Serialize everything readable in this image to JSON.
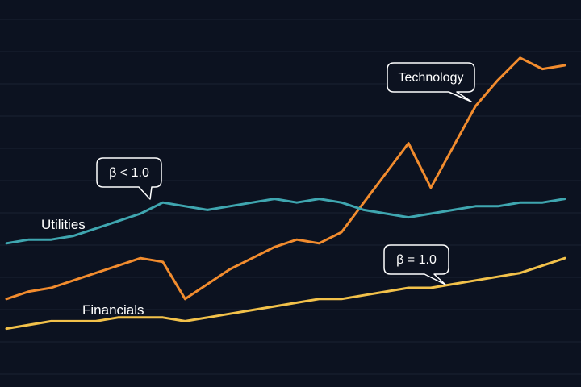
{
  "chart_data": {
    "type": "line",
    "title": "",
    "xlabel": "",
    "ylabel": "",
    "x_ticks": "none",
    "y_ticks": "none",
    "grid": "horizontal",
    "legend": "none (series labelled directly on lines)",
    "ylim": [
      0,
      100
    ],
    "x": [
      0,
      4,
      8,
      12,
      16,
      20,
      24,
      28,
      32,
      36,
      40,
      44,
      48,
      52,
      56,
      60,
      64,
      68,
      72,
      76,
      80,
      84,
      88,
      92,
      96,
      100
    ],
    "series": [
      {
        "name": "Technology",
        "color": "#f28c2e",
        "values": [
          22,
          24,
          25,
          27,
          29,
          31,
          33,
          32,
          22,
          26,
          30,
          33,
          36,
          38,
          37,
          40,
          48,
          56,
          64,
          52,
          63,
          74,
          81,
          87,
          84,
          85
        ]
      },
      {
        "name": "Utilities",
        "color": "#3fa6b0",
        "values": [
          37,
          38,
          38,
          39,
          41,
          43,
          45,
          48,
          47,
          46,
          47,
          48,
          49,
          48,
          49,
          48,
          46,
          45,
          44,
          45,
          46,
          47,
          47,
          48,
          48,
          49
        ]
      },
      {
        "name": "Financials",
        "color": "#f2c14a",
        "values": [
          14,
          15,
          16,
          16,
          16,
          17,
          17,
          17,
          16,
          17,
          18,
          19,
          20,
          21,
          22,
          22,
          23,
          24,
          25,
          25,
          26,
          27,
          28,
          29,
          31,
          33
        ]
      }
    ],
    "annotations": [
      {
        "text": "Technology",
        "series": "Technology"
      },
      {
        "text": "β < 1.0",
        "series": "Utilities"
      },
      {
        "text": "β = 1.0",
        "series": "Financials"
      }
    ]
  }
}
